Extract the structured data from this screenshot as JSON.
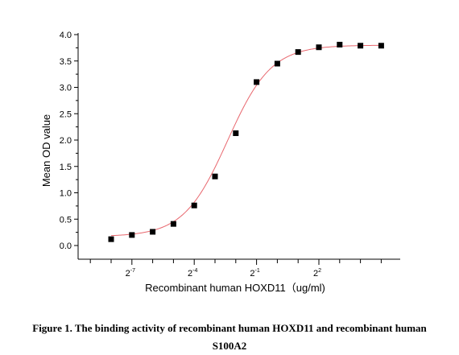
{
  "chart_data": {
    "type": "scatter",
    "xlabel": "Recombinant human HOXD11（ug/ml)",
    "ylabel": "Mean OD value",
    "x_scale": "log2",
    "xlim": [
      -9.5,
      4.5
    ],
    "ylim": [
      -0.25,
      4.2
    ],
    "y_ticks": [
      "0.0",
      "0.5",
      "1.0",
      "1.5",
      "2.0",
      "2.5",
      "3.0",
      "3.5",
      "4.0"
    ],
    "x_tick_labels": [
      {
        "x": -7,
        "base": "2",
        "exp": "-7"
      },
      {
        "x": -4,
        "base": "2",
        "exp": "-4"
      },
      {
        "x": -1,
        "base": "2",
        "exp": "-1"
      },
      {
        "x": 2,
        "base": "2",
        "exp": "2"
      }
    ],
    "points": [
      {
        "x": -8.0,
        "y": 0.12
      },
      {
        "x": -7.0,
        "y": 0.2
      },
      {
        "x": -6.0,
        "y": 0.26
      },
      {
        "x": -5.0,
        "y": 0.41
      },
      {
        "x": -4.0,
        "y": 0.76
      },
      {
        "x": -3.0,
        "y": 1.31
      },
      {
        "x": -2.0,
        "y": 2.13
      },
      {
        "x": -1.0,
        "y": 3.1
      },
      {
        "x": 0.0,
        "y": 3.45
      },
      {
        "x": 1.0,
        "y": 3.67
      },
      {
        "x": 2.0,
        "y": 3.76
      },
      {
        "x": 3.0,
        "y": 3.81
      },
      {
        "x": 4.0,
        "y": 3.79
      },
      {
        "x": 5.0,
        "y": 3.79
      }
    ],
    "marker_color": "#000000",
    "fit_color": "#e8676e",
    "fit": {
      "bottom": 0.17,
      "top": 3.8,
      "ec50_log2": -2.4,
      "slope": 0.95
    }
  },
  "caption": {
    "line1": "Figure 1. The binding activity of recombinant human HOXD11 and recombinant human",
    "line2": "S100A2"
  }
}
